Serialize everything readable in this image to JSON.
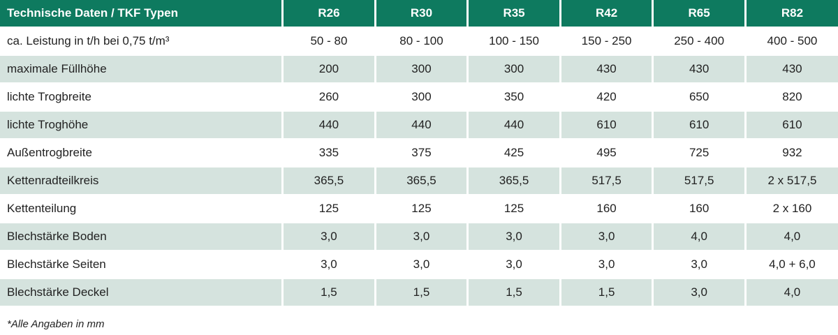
{
  "table": {
    "header": [
      "Technische Daten / TKF Typen",
      "R26",
      "R30",
      "R35",
      "R42",
      "R65",
      "R82"
    ],
    "rows": [
      {
        "label": "ca. Leistung in t/h bei 0,75 t/m³",
        "values": [
          "50 - 80",
          "80 - 100",
          "100 - 150",
          "150 - 250",
          "250 - 400",
          "400 - 500"
        ]
      },
      {
        "label": "maximale Füllhöhe",
        "values": [
          "200",
          "300",
          "300",
          "430",
          "430",
          "430"
        ]
      },
      {
        "label": "lichte Trogbreite",
        "values": [
          "260",
          "300",
          "350",
          "420",
          "650",
          "820"
        ]
      },
      {
        "label": "lichte Troghöhe",
        "values": [
          "440",
          "440",
          "440",
          "610",
          "610",
          "610"
        ]
      },
      {
        "label": "Außentrogbreite",
        "values": [
          "335",
          "375",
          "425",
          "495",
          "725",
          "932"
        ]
      },
      {
        "label": "Kettenradteilkreis",
        "values": [
          "365,5",
          "365,5",
          "365,5",
          "517,5",
          "517,5",
          "2 x 517,5"
        ]
      },
      {
        "label": "Kettenteilung",
        "values": [
          "125",
          "125",
          "125",
          "160",
          "160",
          "2 x 160"
        ]
      },
      {
        "label": "Blechstärke Boden",
        "values": [
          "3,0",
          "3,0",
          "3,0",
          "3,0",
          "4,0",
          "4,0"
        ]
      },
      {
        "label": "Blechstärke Seiten",
        "values": [
          "3,0",
          "3,0",
          "3,0",
          "3,0",
          "3,0",
          "4,0 + 6,0"
        ]
      },
      {
        "label": "Blechstärke Deckel",
        "values": [
          "1,5",
          "1,5",
          "1,5",
          "1,5",
          "3,0",
          "4,0"
        ]
      }
    ]
  },
  "footnote": "*Alle Angaben in mm",
  "colors": {
    "header": "#0e7a5f",
    "stripe": "#d5e3de"
  }
}
